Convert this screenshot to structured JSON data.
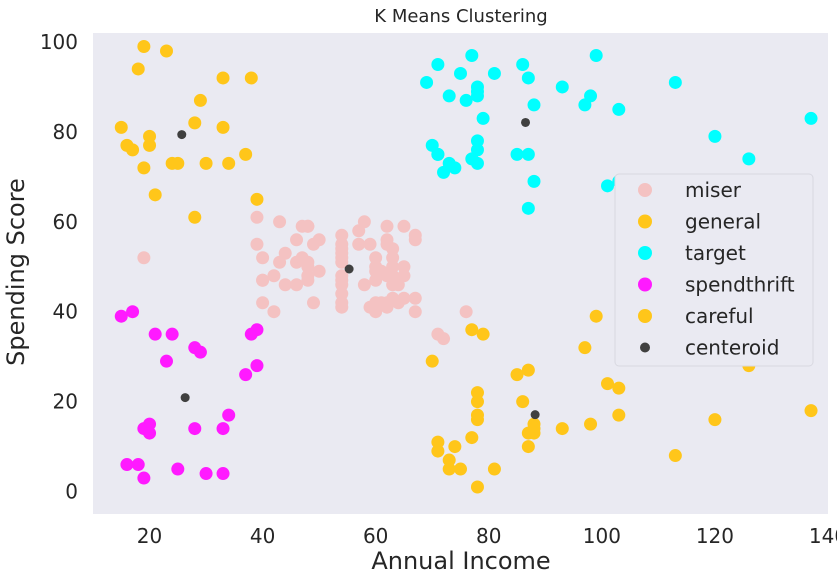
{
  "chart_data": {
    "type": "scatter",
    "title": "K Means Clustering",
    "xlabel": "Annual Income",
    "ylabel": "Spending Score",
    "xlim": [
      10,
      140
    ],
    "ylim": [
      -5,
      102
    ],
    "xticks": [
      20,
      40,
      60,
      80,
      100,
      120,
      140
    ],
    "yticks": [
      0,
      20,
      40,
      60,
      80,
      100
    ],
    "grid": false,
    "background": "#eaeaf2",
    "legend_position": "center-right",
    "series": [
      {
        "name": "miser",
        "color": "#f4c2c2",
        "points": [
          [
            39,
            61
          ],
          [
            39,
            55
          ],
          [
            40,
            47
          ],
          [
            40,
            42
          ],
          [
            40,
            52
          ],
          [
            40,
            47
          ],
          [
            42,
            48
          ],
          [
            42,
            40
          ],
          [
            43,
            51
          ],
          [
            44,
            46
          ],
          [
            44,
            53
          ],
          [
            46,
            51
          ],
          [
            46,
            46
          ],
          [
            46,
            56
          ],
          [
            47,
            52
          ],
          [
            47,
            59
          ],
          [
            48,
            51
          ],
          [
            48,
            59
          ],
          [
            48,
            50
          ],
          [
            48,
            48
          ],
          [
            48,
            59
          ],
          [
            48,
            47
          ],
          [
            49,
            55
          ],
          [
            49,
            42
          ],
          [
            50,
            49
          ],
          [
            50,
            56
          ],
          [
            54,
            47
          ],
          [
            54,
            54
          ],
          [
            54,
            53
          ],
          [
            54,
            48
          ],
          [
            54,
            52
          ],
          [
            54,
            42
          ],
          [
            54,
            51
          ],
          [
            54,
            55
          ],
          [
            54,
            41
          ],
          [
            54,
            44
          ],
          [
            54,
            57
          ],
          [
            54,
            46
          ],
          [
            57,
            58
          ],
          [
            57,
            55
          ],
          [
            58,
            60
          ],
          [
            58,
            46
          ],
          [
            59,
            55
          ],
          [
            59,
            41
          ],
          [
            60,
            49
          ],
          [
            60,
            40
          ],
          [
            60,
            42
          ],
          [
            60,
            52
          ],
          [
            60,
            47
          ],
          [
            60,
            50
          ],
          [
            61,
            42
          ],
          [
            61,
            49
          ],
          [
            62,
            41
          ],
          [
            62,
            48
          ],
          [
            62,
            59
          ],
          [
            62,
            55
          ],
          [
            62,
            56
          ],
          [
            62,
            42
          ],
          [
            63,
            50
          ],
          [
            63,
            46
          ],
          [
            63,
            43
          ],
          [
            63,
            48
          ],
          [
            63,
            52
          ],
          [
            63,
            54
          ],
          [
            64,
            42
          ],
          [
            64,
            46
          ],
          [
            65,
            48
          ],
          [
            65,
            50
          ],
          [
            65,
            43
          ],
          [
            65,
            59
          ],
          [
            67,
            43
          ],
          [
            67,
            57
          ],
          [
            67,
            56
          ],
          [
            67,
            40
          ],
          [
            19,
            52
          ],
          [
            43,
            60
          ],
          [
            72,
            34
          ],
          [
            71,
            35
          ],
          [
            76,
            40
          ]
        ]
      },
      {
        "name": "general",
        "color": "#ffc61a",
        "points": [
          [
            15,
            81
          ],
          [
            16,
            77
          ],
          [
            17,
            76
          ],
          [
            18,
            94
          ],
          [
            19,
            72
          ],
          [
            19,
            99
          ],
          [
            20,
            77
          ],
          [
            20,
            79
          ],
          [
            21,
            66
          ],
          [
            23,
            98
          ],
          [
            24,
            73
          ],
          [
            25,
            73
          ],
          [
            28,
            82
          ],
          [
            28,
            61
          ],
          [
            29,
            87
          ],
          [
            30,
            73
          ],
          [
            33,
            92
          ],
          [
            33,
            81
          ],
          [
            34,
            73
          ],
          [
            37,
            75
          ],
          [
            38,
            92
          ],
          [
            39,
            65
          ]
        ]
      },
      {
        "name": "target",
        "color": "#00ffff",
        "points": [
          [
            69,
            91
          ],
          [
            70,
            77
          ],
          [
            71,
            95
          ],
          [
            71,
            75
          ],
          [
            71,
            75
          ],
          [
            72,
            71
          ],
          [
            73,
            88
          ],
          [
            73,
            73
          ],
          [
            74,
            72
          ],
          [
            75,
            93
          ],
          [
            76,
            87
          ],
          [
            77,
            97
          ],
          [
            77,
            74
          ],
          [
            78,
            90
          ],
          [
            78,
            88
          ],
          [
            78,
            76
          ],
          [
            78,
            89
          ],
          [
            78,
            78
          ],
          [
            78,
            73
          ],
          [
            79,
            83
          ],
          [
            81,
            93
          ],
          [
            85,
            75
          ],
          [
            86,
            95
          ],
          [
            87,
            63
          ],
          [
            87,
            75
          ],
          [
            87,
            92
          ],
          [
            88,
            86
          ],
          [
            88,
            69
          ],
          [
            93,
            90
          ],
          [
            97,
            86
          ],
          [
            98,
            88
          ],
          [
            99,
            97
          ],
          [
            101,
            68
          ],
          [
            103,
            85
          ],
          [
            103,
            69
          ],
          [
            113,
            91
          ],
          [
            120,
            79
          ],
          [
            126,
            74
          ],
          [
            137,
            83
          ]
        ]
      },
      {
        "name": "spendthrift",
        "color": "#ff1aff",
        "points": [
          [
            15,
            39
          ],
          [
            16,
            6
          ],
          [
            17,
            40
          ],
          [
            18,
            6
          ],
          [
            19,
            3
          ],
          [
            19,
            14
          ],
          [
            20,
            15
          ],
          [
            20,
            13
          ],
          [
            21,
            35
          ],
          [
            23,
            29
          ],
          [
            24,
            35
          ],
          [
            25,
            5
          ],
          [
            28,
            14
          ],
          [
            28,
            32
          ],
          [
            29,
            31
          ],
          [
            30,
            4
          ],
          [
            33,
            4
          ],
          [
            33,
            14
          ],
          [
            34,
            17
          ],
          [
            37,
            26
          ],
          [
            38,
            35
          ],
          [
            39,
            36
          ],
          [
            39,
            28
          ]
        ]
      },
      {
        "name": "careful",
        "color": "#ffc61a",
        "points": [
          [
            70,
            29
          ],
          [
            71,
            11
          ],
          [
            71,
            9
          ],
          [
            73,
            5
          ],
          [
            73,
            7
          ],
          [
            74,
            10
          ],
          [
            75,
            5
          ],
          [
            77,
            12
          ],
          [
            77,
            36
          ],
          [
            78,
            22
          ],
          [
            78,
            17
          ],
          [
            78,
            20
          ],
          [
            78,
            16
          ],
          [
            78,
            1
          ],
          [
            79,
            35
          ],
          [
            81,
            5
          ],
          [
            85,
            26
          ],
          [
            86,
            20
          ],
          [
            87,
            27
          ],
          [
            87,
            13
          ],
          [
            87,
            10
          ],
          [
            88,
            13
          ],
          [
            88,
            15
          ],
          [
            88,
            14
          ],
          [
            93,
            14
          ],
          [
            97,
            32
          ],
          [
            98,
            15
          ],
          [
            99,
            39
          ],
          [
            101,
            24
          ],
          [
            103,
            17
          ],
          [
            103,
            23
          ],
          [
            113,
            8
          ],
          [
            120,
            16
          ],
          [
            126,
            28
          ],
          [
            137,
            18
          ]
        ]
      },
      {
        "name": "centeroid",
        "color": "#404040",
        "points": [
          [
            55.3,
            49.5
          ],
          [
            25.7,
            79.4
          ],
          [
            86.5,
            82.1
          ],
          [
            26.3,
            20.9
          ],
          [
            88.2,
            17.1
          ]
        ]
      }
    ]
  }
}
